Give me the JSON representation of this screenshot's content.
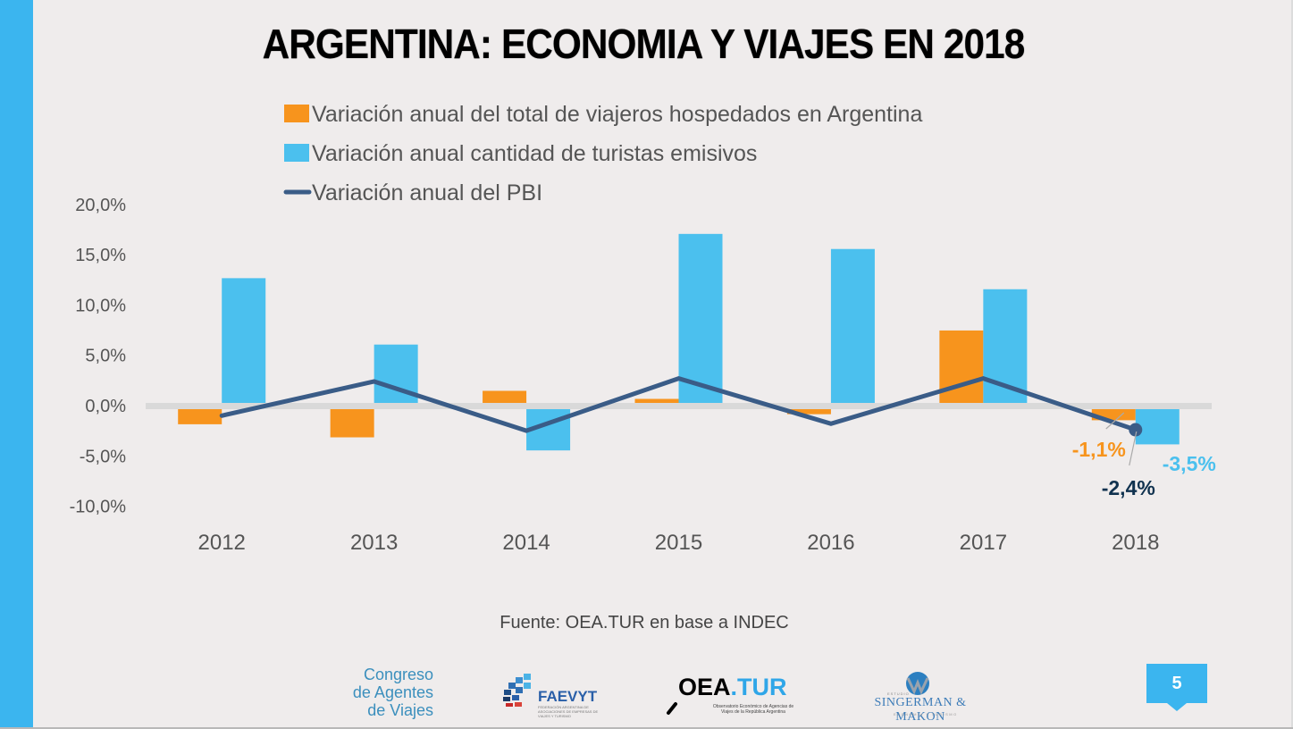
{
  "slide": {
    "title": "ARGENTINA: ECONOMIA Y VIAJES EN 2018",
    "source": "Fuente: OEA.TUR en base a INDEC",
    "page_number": "5",
    "accent_color": "#3bb5ef"
  },
  "logos": {
    "congreso": [
      "Congreso",
      "de Agentes",
      "de Viajes"
    ],
    "faevyt": {
      "name": "FAEVYT",
      "subtitle": "FEDERACIÓN ARGENTINA DE ASOCIACIONES DE EMPRESAS DE VIAJES Y TURISMO"
    },
    "oeatur": {
      "name_a": "OEA",
      "name_b": ".TUR",
      "subtitle": "Observatorio Económico de Agencias de Viajes de la República Argentina"
    },
    "singerman": {
      "estudio": "ESTUDIO",
      "name": "SINGERMAN & MAKON",
      "subtitle": "ECONOMÍA Y TURISMO"
    }
  },
  "chart_data": {
    "type": "bar",
    "title": "ARGENTINA: ECONOMIA Y VIAJES EN 2018",
    "xlabel": "",
    "ylabel": "",
    "categories": [
      "2012",
      "2013",
      "2014",
      "2015",
      "2016",
      "2017",
      "2018"
    ],
    "ylim": [
      -10,
      20
    ],
    "yticks": [
      20,
      15,
      10,
      5,
      0,
      -5,
      -10
    ],
    "ytick_labels": [
      "20,0%",
      "15,0%",
      "10,0%",
      "5,0%",
      "0,0%",
      "-5,0%",
      "-10,0%"
    ],
    "grid": false,
    "legend_position": "top",
    "series": [
      {
        "name": "Variación anual del total de viajeros hospedados en Argentina",
        "type": "bar",
        "color": "#f7941d",
        "values": [
          -1.5,
          -2.8,
          1.2,
          0.4,
          -0.5,
          7.2,
          -1.1
        ]
      },
      {
        "name": "Variación anual cantidad de turistas emisivos",
        "type": "bar",
        "color": "#4bc0ee",
        "values": [
          12.4,
          5.8,
          -4.1,
          16.8,
          15.3,
          11.3,
          -3.5
        ]
      },
      {
        "name": "Variación anual del PBI",
        "type": "line",
        "color": "#3a5c87",
        "values": [
          -1.0,
          2.4,
          -2.5,
          2.7,
          -1.8,
          2.7,
          -2.4
        ]
      }
    ],
    "annotations": [
      {
        "category": "2018",
        "series": 0,
        "text": "-1,1%",
        "color": "#f7941d"
      },
      {
        "category": "2018",
        "series": 1,
        "text": "-3,5%",
        "color": "#4bc0ee"
      },
      {
        "category": "2018",
        "series": 2,
        "text": "-2,4%",
        "color": "#10324f"
      }
    ]
  }
}
